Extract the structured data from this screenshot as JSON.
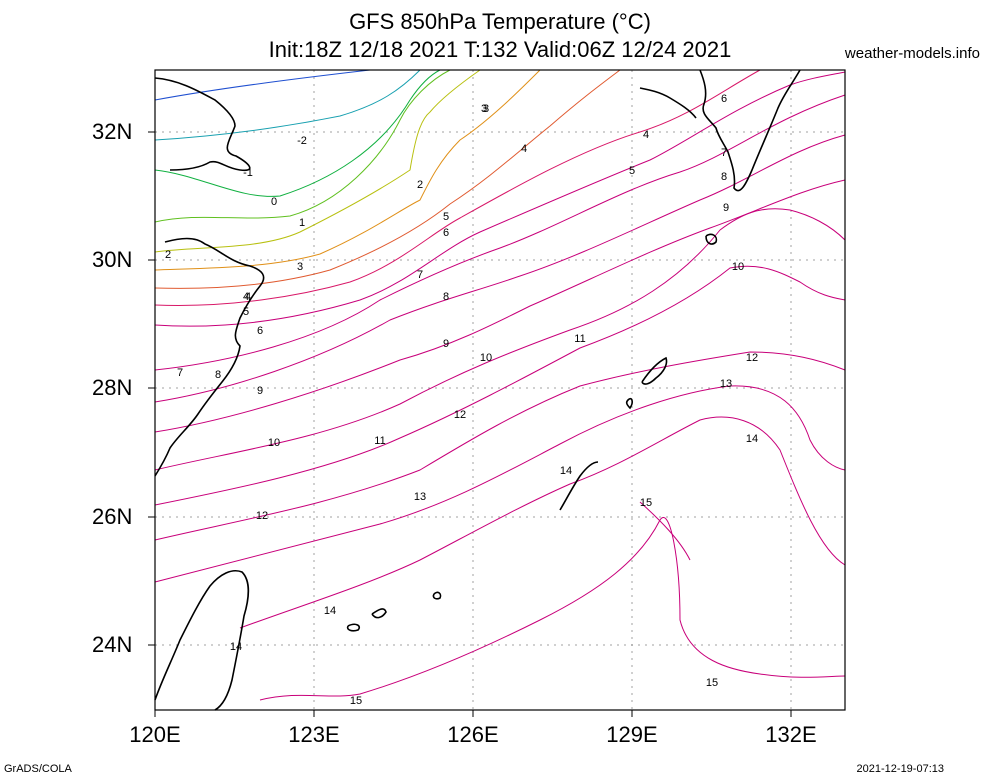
{
  "header": {
    "title_line1": "GFS 850hPa Temperature (°C)",
    "title_line2": "Init:18Z 12/18 2021 T:132 Valid:06Z 12/24 2021",
    "credit": "weather-models.info"
  },
  "footer": {
    "left": "GrADS/COLA",
    "right": "2021-12-19-07:13"
  },
  "map": {
    "lon_range": [
      120,
      133
    ],
    "lat_range": [
      23,
      33
    ],
    "y_ticks": [
      "32N",
      "30N",
      "28N",
      "26N",
      "24N"
    ],
    "x_ticks": [
      "120E",
      "123E",
      "126E",
      "129E",
      "132E"
    ],
    "variable": "850hPa Temperature",
    "units": "°C",
    "contour_interval": 1,
    "colors": {
      "cold": "#3a5fcd",
      "cool": "#00a060",
      "mild": "#e08020",
      "warm": "#c8007a",
      "coast": "#000000",
      "grid": "#a0a0a0"
    },
    "contour_labels": [
      "-2",
      "-1",
      "0",
      "1",
      "2",
      "3",
      "4",
      "5",
      "6",
      "7",
      "8",
      "9",
      "10",
      "11",
      "12",
      "13",
      "14",
      "15"
    ],
    "contour_label_instances": [
      "-2",
      "-1",
      "0",
      "1",
      "2",
      "3",
      "4",
      "5",
      "6",
      "7",
      "8",
      "9",
      "10",
      "11",
      "12",
      "13",
      "14",
      "15",
      "2",
      "3",
      "4",
      "5",
      "6",
      "7",
      "8",
      "9",
      "10",
      "11",
      "12",
      "13",
      "14",
      "15",
      "3",
      "4",
      "5",
      "6",
      "7",
      "8",
      "9",
      "10",
      "11",
      "12",
      "13",
      "14",
      "15",
      "4",
      "5",
      "6",
      "7",
      "8",
      "9",
      "10",
      "11",
      "12",
      "13",
      "14",
      "15",
      "15",
      "15"
    ]
  }
}
